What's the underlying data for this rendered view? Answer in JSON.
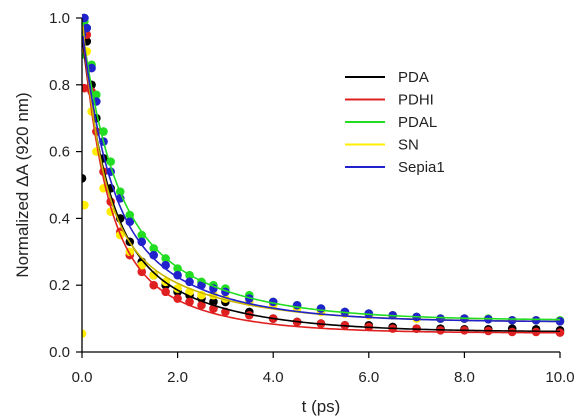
{
  "chart_data": {
    "type": "scatter",
    "title": "",
    "xlabel": "t (ps)",
    "ylabel": "Normalized ΔA (920 nm)",
    "xlim": [
      0,
      10
    ],
    "ylim": [
      0,
      1.0
    ],
    "x_ticks": [
      "0.0",
      "2.0",
      "4.0",
      "6.0",
      "8.0",
      "10.0"
    ],
    "y_ticks": [
      "0.0",
      "0.2",
      "0.4",
      "0.6",
      "0.8",
      "1.0"
    ],
    "grid": false,
    "legend_position": "top-right",
    "series": [
      {
        "name": "PDA",
        "color": "#000000",
        "fit": {
          "a1": 0.56,
          "tau1": 0.5,
          "a2": 0.33,
          "tau2": 1.9,
          "c": 0.06
        },
        "points_x": [
          0,
          0.05,
          0.1,
          0.2,
          0.3,
          0.45,
          0.6,
          0.8,
          1.0,
          1.25,
          1.5,
          1.75,
          2.0,
          2.25,
          2.5,
          2.75,
          3.0,
          3.5,
          4.0,
          4.5,
          5.0,
          5.5,
          6.0,
          6.5,
          7.0,
          7.5,
          8.0,
          8.5,
          9.0,
          9.5,
          10.0
        ],
        "points_y": [
          0.52,
          1.0,
          0.93,
          0.8,
          0.7,
          0.58,
          0.49,
          0.4,
          0.33,
          0.27,
          0.23,
          0.2,
          0.18,
          0.17,
          0.16,
          0.15,
          0.15,
          0.12,
          0.1,
          0.09,
          0.085,
          0.08,
          0.08,
          0.075,
          0.07,
          0.07,
          0.068,
          0.068,
          0.07,
          0.068,
          0.065
        ]
      },
      {
        "name": "PDHI",
        "color": "#e02020",
        "fit": {
          "a1": 0.6,
          "tau1": 0.45,
          "a2": 0.32,
          "tau2": 1.6,
          "c": 0.057
        },
        "points_x": [
          0,
          0.05,
          0.1,
          0.2,
          0.3,
          0.45,
          0.6,
          0.8,
          1.0,
          1.25,
          1.5,
          1.75,
          2.0,
          2.25,
          2.5,
          2.75,
          3.0,
          3.5,
          4.0,
          4.5,
          5.0,
          5.5,
          6.0,
          6.5,
          7.0,
          7.5,
          8.0,
          8.5,
          9.0,
          9.5,
          10.0
        ],
        "points_y": [
          0.44,
          0.79,
          0.95,
          0.78,
          0.66,
          0.54,
          0.45,
          0.36,
          0.29,
          0.24,
          0.2,
          0.18,
          0.16,
          0.15,
          0.14,
          0.13,
          0.12,
          0.11,
          0.1,
          0.09,
          0.085,
          0.08,
          0.075,
          0.07,
          0.07,
          0.065,
          0.065,
          0.063,
          0.06,
          0.06,
          0.058
        ]
      },
      {
        "name": "PDAL",
        "color": "#22dd22",
        "fit": {
          "a1": 0.46,
          "tau1": 0.55,
          "a2": 0.42,
          "tau2": 1.9,
          "c": 0.095
        },
        "points_x": [
          0,
          0.05,
          0.1,
          0.2,
          0.3,
          0.45,
          0.6,
          0.8,
          1.0,
          1.25,
          1.5,
          1.75,
          2.0,
          2.25,
          2.5,
          2.75,
          3.0,
          3.5,
          4.0,
          4.5,
          5.0,
          5.5,
          6.0,
          6.5,
          7.0,
          7.5,
          8.0,
          8.5,
          9.0,
          9.5,
          10.0
        ],
        "points_y": [
          0.89,
          0.99,
          0.97,
          0.86,
          0.77,
          0.66,
          0.57,
          0.48,
          0.41,
          0.35,
          0.31,
          0.28,
          0.25,
          0.23,
          0.21,
          0.2,
          0.19,
          0.17,
          0.15,
          0.14,
          0.13,
          0.12,
          0.115,
          0.11,
          0.105,
          0.1,
          0.1,
          0.1,
          0.095,
          0.095,
          0.095
        ]
      },
      {
        "name": "SN",
        "color": "#ffee00",
        "fit": {
          "a1": 0.6,
          "tau1": 0.4,
          "a2": 0.32,
          "tau2": 1.9,
          "c": 0.09
        },
        "points_x": [
          0,
          0.05,
          0.1,
          0.2,
          0.3,
          0.45,
          0.6,
          0.8,
          1.0,
          1.25,
          1.5,
          1.75,
          2.0,
          2.25,
          2.5,
          2.75,
          3.0,
          3.5,
          4.0,
          4.5,
          5.0,
          5.5,
          6.0,
          6.5,
          7.0,
          7.5,
          8.0,
          8.5,
          9.0,
          9.5,
          10.0
        ],
        "points_y": [
          0.055,
          0.44,
          0.9,
          0.72,
          0.6,
          0.49,
          0.42,
          0.35,
          0.3,
          0.26,
          0.23,
          0.21,
          0.19,
          0.18,
          0.17,
          0.17,
          0.16,
          0.15,
          0.14,
          0.13,
          0.12,
          0.115,
          0.11,
          0.11,
          0.1,
          0.1,
          0.1,
          0.098,
          0.095,
          0.095,
          0.092
        ]
      },
      {
        "name": "Sepia1",
        "color": "#2222cc",
        "fit": {
          "a1": 0.5,
          "tau1": 0.5,
          "a2": 0.38,
          "tau2": 1.8,
          "c": 0.09
        },
        "points_x": [
          0,
          0.05,
          0.1,
          0.2,
          0.3,
          0.45,
          0.6,
          0.8,
          1.0,
          1.25,
          1.5,
          1.75,
          2.0,
          2.25,
          2.5,
          2.75,
          3.0,
          3.5,
          4.0,
          4.5,
          5.0,
          5.5,
          6.0,
          6.5,
          7.0,
          7.5,
          8.0,
          8.5,
          9.0,
          9.5,
          10.0
        ],
        "points_y": [
          0.95,
          1.0,
          0.97,
          0.85,
          0.75,
          0.63,
          0.54,
          0.46,
          0.39,
          0.33,
          0.29,
          0.26,
          0.23,
          0.21,
          0.2,
          0.19,
          0.18,
          0.16,
          0.15,
          0.14,
          0.13,
          0.12,
          0.115,
          0.11,
          0.105,
          0.1,
          0.1,
          0.098,
          0.095,
          0.095,
          0.092
        ]
      }
    ]
  }
}
